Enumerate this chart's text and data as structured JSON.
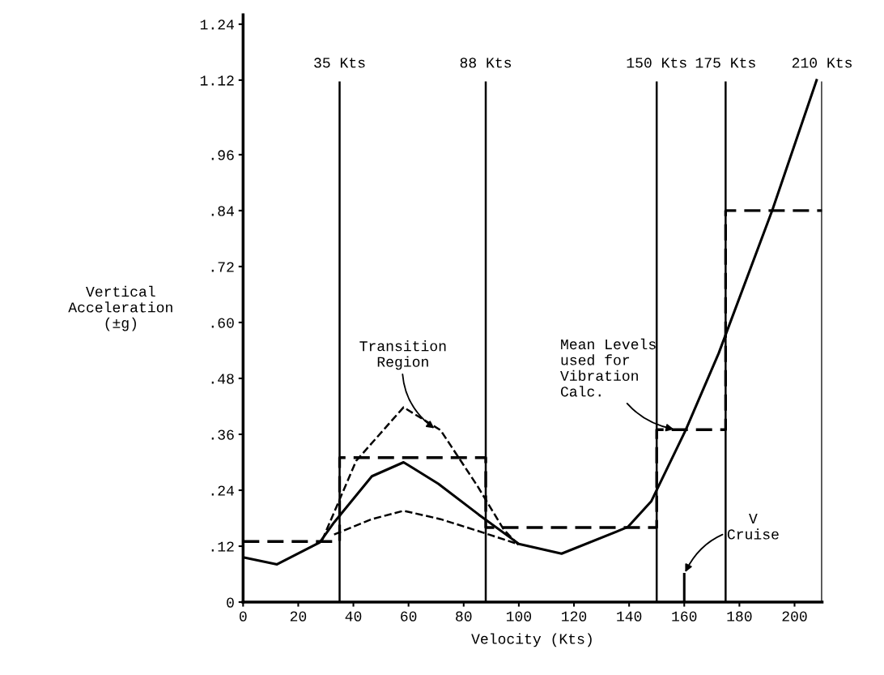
{
  "chart_data": {
    "type": "line",
    "xlabel": "Velocity (Kts)",
    "ylabel": "Vertical\nAcceleration\n(±g)",
    "xlim": [
      0,
      210
    ],
    "xticks": [
      0,
      20,
      40,
      60,
      80,
      100,
      120,
      140,
      160,
      180,
      200
    ],
    "ylim": [
      0,
      1.26
    ],
    "yticks": [
      0,
      {
        "value": 0.12,
        "label": ".12"
      },
      {
        "value": 0.24,
        "label": ".24"
      },
      {
        "value": 0.36,
        "label": ".36"
      },
      {
        "value": 0.48,
        "label": ".48"
      },
      {
        "value": 0.6,
        "label": ".60"
      },
      {
        "value": 0.72,
        "label": ".72"
      },
      {
        "value": 0.84,
        "label": ".84"
      },
      {
        "value": 0.96,
        "label": ".96"
      },
      1.12,
      1.24
    ],
    "grid": false,
    "marker": "none",
    "series": [
      {
        "color": "#000000",
        "line_style": "solid",
        "x": [
          0,
          12.3,
          27.8,
          33,
          46.7,
          58.2,
          70.8,
          85.4,
          100,
          115.5,
          139.5,
          148,
          160.5,
          172.5,
          192,
          208
        ],
        "values": [
          0.096,
          0.081,
          0.128,
          0.171,
          0.27,
          0.3,
          0.254,
          0.188,
          0.125,
          0.104,
          0.161,
          0.216,
          0.369,
          0.534,
          0.842,
          1.12
        ]
      },
      {
        "color": "#000000",
        "line_style": "dashed",
        "x": [
          28.7,
          41,
          58.2,
          71.6,
          85,
          94.6,
          100
        ],
        "values": [
          0.133,
          0.303,
          0.418,
          0.369,
          0.249,
          0.155,
          0.122
        ]
      },
      {
        "color": "#000000",
        "line_style": "dashed",
        "x": [
          33,
          46.7,
          58.2,
          71.6,
          85,
          99.4
        ],
        "values": [
          0.145,
          0.178,
          0.196,
          0.178,
          0.153,
          0.125
        ]
      },
      {
        "type": "step",
        "color": "#000000",
        "line_style": "dashed",
        "x": [
          0,
          35,
          88,
          150,
          175,
          210
        ],
        "values": [
          0.13,
          0.31,
          0.16,
          0.37,
          0.84,
          0.84
        ]
      },
      {
        "color": "#000000",
        "line_style": "solid",
        "x": [
          160,
          160
        ],
        "values": [
          0,
          0.06
        ]
      }
    ],
    "ref_lines": [
      {
        "axis": "x",
        "value": 35,
        "label": "35 Kts"
      },
      {
        "axis": "x",
        "value": 88,
        "label": "88 Kts"
      },
      {
        "axis": "x",
        "value": 150,
        "label": "150 Kts"
      },
      {
        "axis": "x",
        "value": 175,
        "label": "175 Kts"
      },
      {
        "axis": "x",
        "value": 210,
        "label": "210 Kts"
      }
    ],
    "annotations": [
      {
        "text": "Transition\nRegion",
        "x": 70,
        "y": 0.37
      },
      {
        "text": "Mean Levels\nused for\nVibration\nCalc.",
        "x": 157,
        "y": 0.37
      },
      {
        "text": "V\nCruise",
        "x": 160,
        "y": 0.06
      }
    ]
  }
}
